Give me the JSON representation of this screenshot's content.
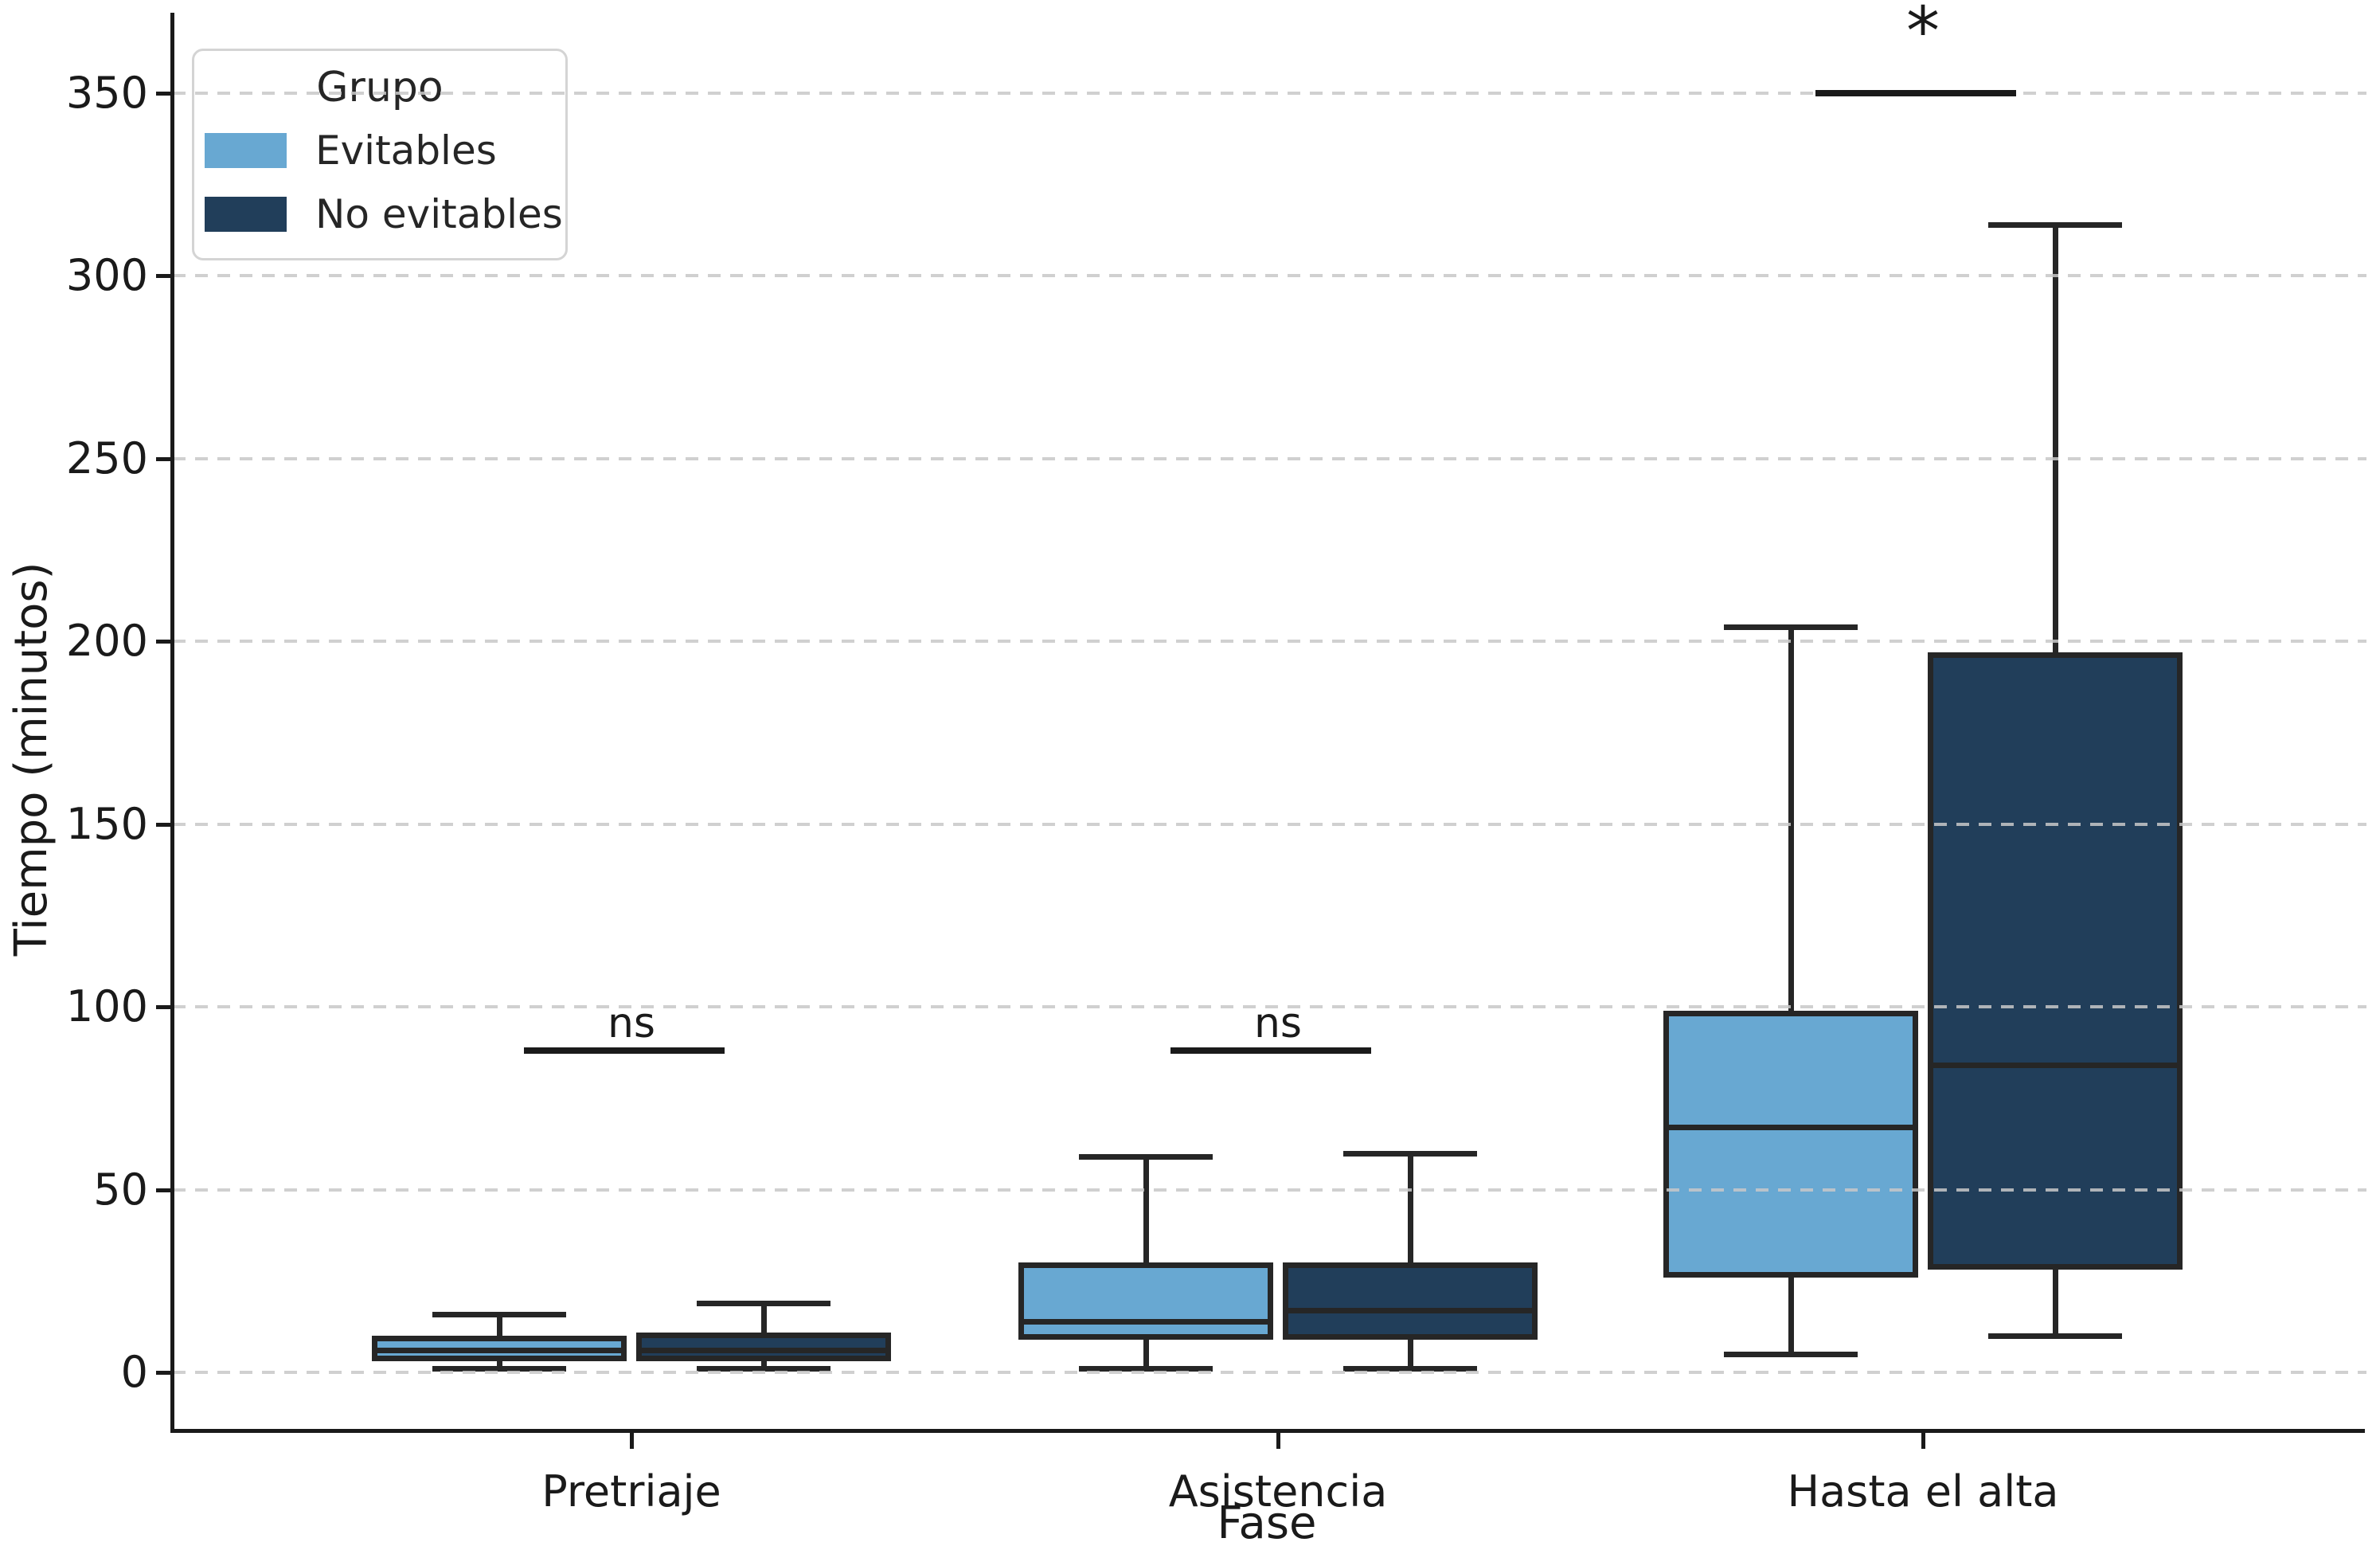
{
  "chart_data": {
    "type": "boxplot",
    "title": "",
    "xlabel": "Fase",
    "ylabel": "Tiempo (minutos)",
    "categories": [
      "Pretriaje",
      "Asistencia",
      "Hasta el alta"
    ],
    "y_ticks": [
      0,
      50,
      100,
      150,
      200,
      250,
      300,
      350
    ],
    "ylim": [
      -16,
      366
    ],
    "grid": "horizontal-dashed",
    "legend": {
      "title": "Grupo",
      "position": "upper-left",
      "entries": [
        {
          "label": "Evitables",
          "color": "#68a8d2"
        },
        {
          "label": "No evitables",
          "color": "#213e5a"
        }
      ]
    },
    "series": [
      {
        "name": "Evitables",
        "color": "#68a8d2",
        "boxes": [
          {
            "category": "Pretriaje",
            "min": 1,
            "q1": 3,
            "median": 6,
            "q3": 10,
            "max": 16
          },
          {
            "category": "Asistencia",
            "min": 1,
            "q1": 9,
            "median": 14,
            "q3": 30,
            "max": 59
          },
          {
            "category": "Hasta el alta",
            "min": 5,
            "q1": 26,
            "median": 67,
            "q3": 99,
            "max": 204
          }
        ]
      },
      {
        "name": "No evitables",
        "color": "#213e5a",
        "boxes": [
          {
            "category": "Pretriaje",
            "min": 1,
            "q1": 3,
            "median": 6,
            "q3": 11,
            "max": 19
          },
          {
            "category": "Asistencia",
            "min": 1,
            "q1": 9,
            "median": 17,
            "q3": 30,
            "max": 60
          },
          {
            "category": "Hasta el alta",
            "min": 10,
            "q1": 28,
            "median": 84,
            "q3": 197,
            "max": 314
          }
        ]
      }
    ],
    "significance": [
      {
        "category": "Pretriaje",
        "label": "ns",
        "bar_y": 88
      },
      {
        "category": "Asistencia",
        "label": "ns",
        "bar_y": 88
      },
      {
        "category": "Hasta el alta",
        "label": "*",
        "bar_y": 350
      }
    ],
    "colors": {
      "box_edge": "#262626",
      "grid": "#c8c8c8",
      "axis": "#1a1a1a",
      "background": "#ffffff"
    }
  }
}
